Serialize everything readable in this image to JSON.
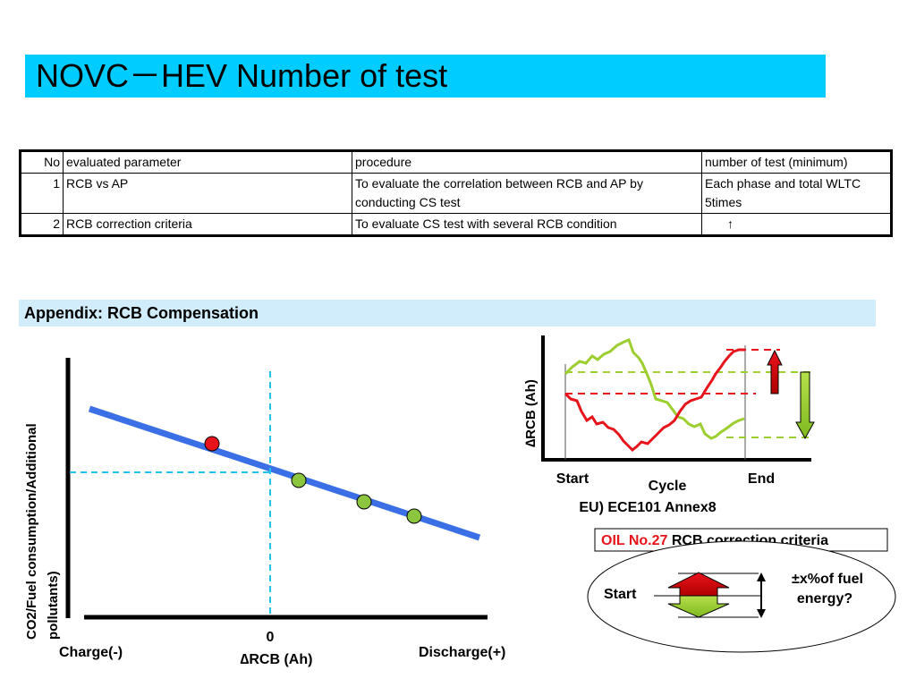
{
  "title": "NOVC－HEV Number of test",
  "table": {
    "header": [
      "No",
      "evaluated parameter",
      "procedure",
      "number of test (minimum)"
    ],
    "rows": [
      {
        "no": "1",
        "param": "RCB vs AP",
        "procedure": "To evaluate the correlation between RCB and AP by conducting CS test",
        "count": "Each phase and total WLTC 5times"
      },
      {
        "no": "2",
        "param": "RCB correction criteria",
        "procedure": "To evaluate CS test with several RCB condition",
        "count": "↑"
      }
    ]
  },
  "appendix": "Appendix: RCB Compensation",
  "left_chart": {
    "y_label_line1": "CO2/Fuel consumption/Additional",
    "y_label_line2": "pollutants)",
    "x_left": "Charge(-)",
    "x_zero": "0",
    "x_label": "∆RCB  (Ah)",
    "x_right": "Discharge(+)",
    "colors": {
      "line": "#3b6fe6",
      "red_point": "#e8141c",
      "green_point": "#8cc63f",
      "dash": "#1fc4e8"
    }
  },
  "right_chart": {
    "y_label": "∆RCB  (Ah)",
    "start": "Start",
    "cycle": "Cycle",
    "end": "End",
    "caption": "EU) ECE101 Annex8",
    "colors": {
      "red": "#e8141c",
      "green": "#9bce2e"
    }
  },
  "oil": {
    "label_red": "OIL No.27",
    "label_black": " RCB correction criteria",
    "start": "Start",
    "note_line1": "±x%of fuel",
    "note_line2": "energy?"
  }
}
